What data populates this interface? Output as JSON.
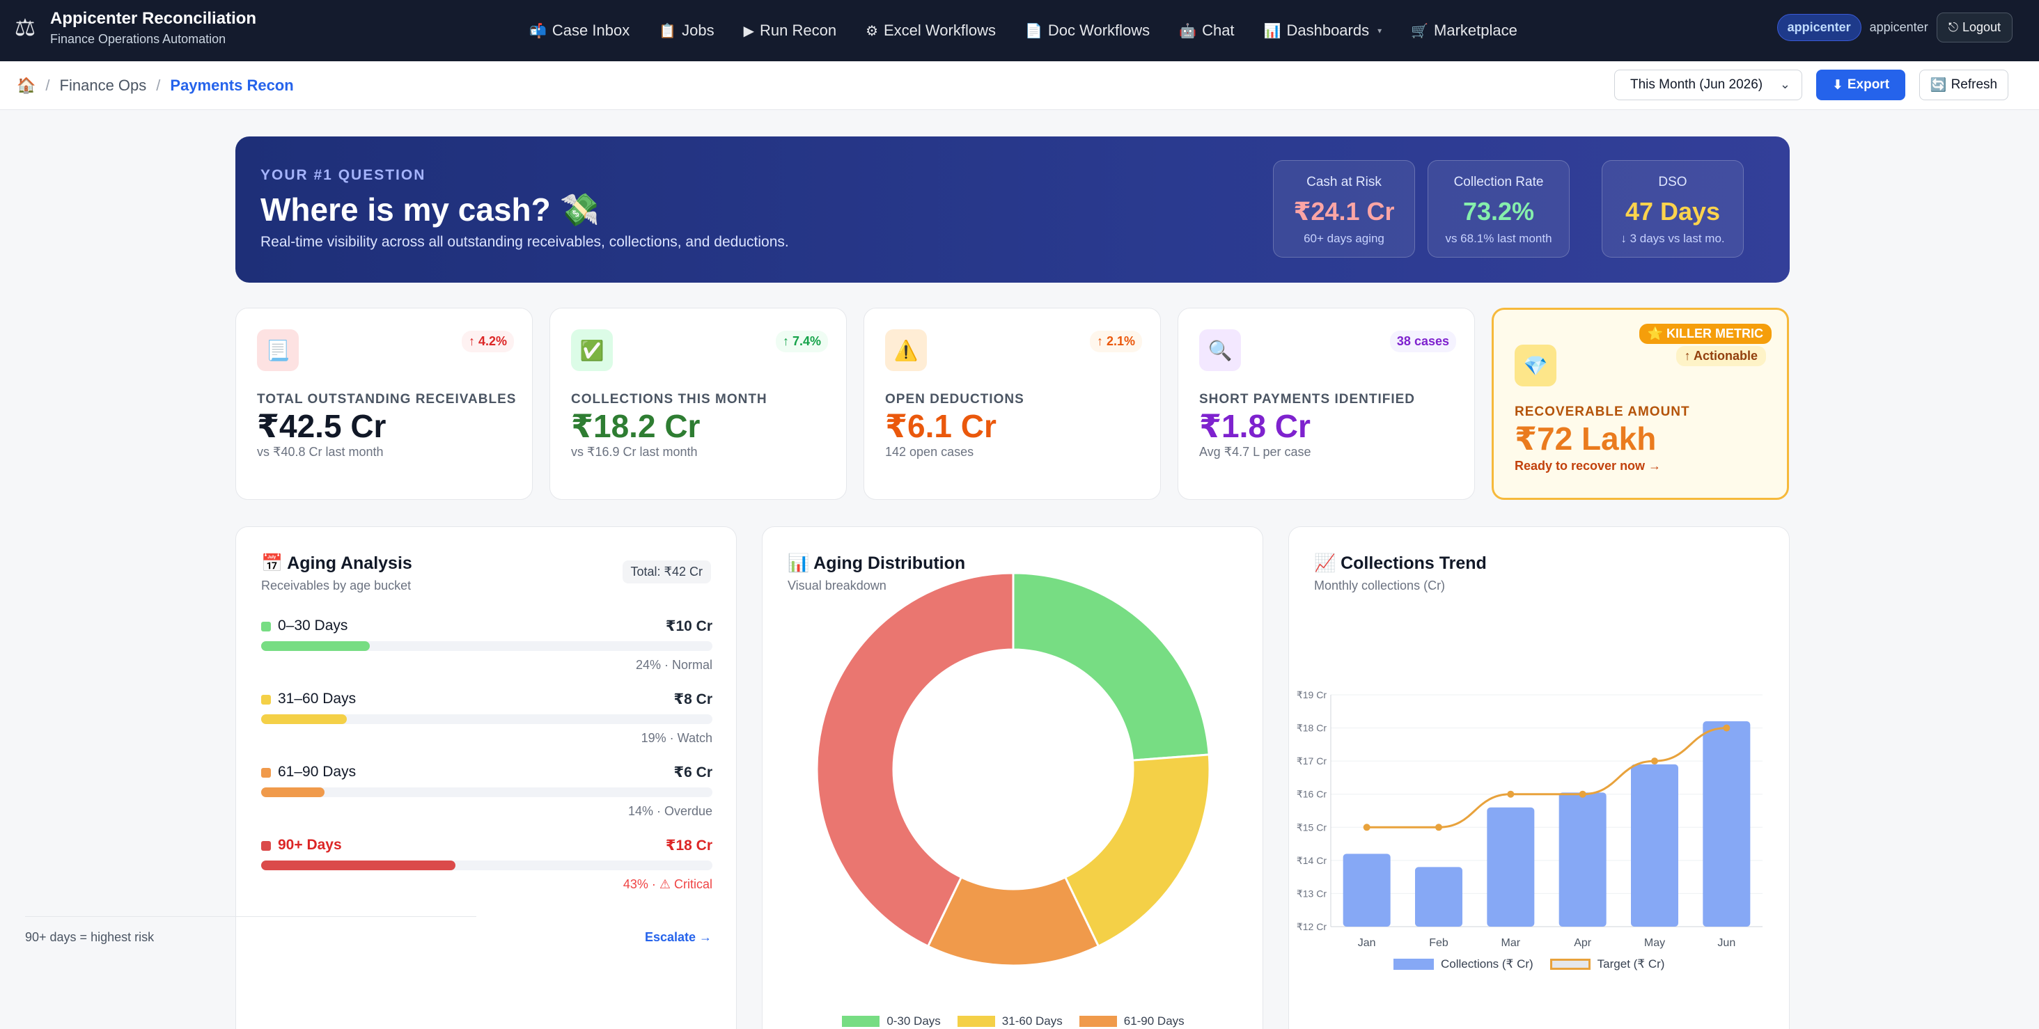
{
  "nav": {
    "title": "Appicenter Reconciliation",
    "subtitle": "Finance Operations Automation",
    "links": [
      {
        "icon": "📬",
        "label": "Case Inbox"
      },
      {
        "icon": "📋",
        "label": "Jobs"
      },
      {
        "icon": "▶",
        "label": "Run Recon"
      },
      {
        "icon": "⚙",
        "label": "Excel Workflows"
      },
      {
        "icon": "📄",
        "label": "Doc Workflows"
      },
      {
        "icon": "🤖",
        "label": "Chat"
      },
      {
        "icon": "📊",
        "label": "Dashboards"
      },
      {
        "icon": "🛒",
        "label": "Marketplace"
      }
    ],
    "user_badge": "appicenter",
    "user_name": "appicenter",
    "logout": "Logout"
  },
  "breadcrumb": {
    "home_icon": "🏠",
    "items": [
      "Finance Ops",
      "Payments Recon"
    ]
  },
  "toolbar": {
    "period": "This Month (Jun 2026)",
    "export": "Export",
    "refresh": "Refresh"
  },
  "hero": {
    "eyebrow": "YOUR #1 QUESTION",
    "title": "Where is my cash? 💸",
    "subtitle": "Real-time visibility across all outstanding receivables, collections, and deductions.",
    "stats": [
      {
        "label": "Cash at Risk",
        "value": "₹24.1 Cr",
        "note": "60+ days aging",
        "color": "#fca5a5"
      },
      {
        "label": "Collection Rate",
        "value": "73.2%",
        "note": "vs 68.1% last month",
        "color": "#86efac"
      },
      {
        "label": "DSO",
        "value": "47 Days",
        "note": "↓ 3 days vs last mo.",
        "color": "#fcd34d"
      }
    ]
  },
  "kpis": [
    {
      "icon": "📃",
      "delta": "↑ 4.2%",
      "label": "TOTAL OUTSTANDING RECEIVABLES",
      "value": "₹42.5 Cr",
      "note": "vs ₹40.8 Cr last month",
      "color": "#111827"
    },
    {
      "icon": "✅",
      "delta": "↑ 7.4%",
      "label": "COLLECTIONS THIS MONTH",
      "value": "₹18.2 Cr",
      "note": "vs ₹16.9 Cr last month",
      "color": "#2e7d32"
    },
    {
      "icon": "⚠️",
      "delta": "↑ 2.1%",
      "label": "OPEN DEDUCTIONS",
      "value": "₹6.1 Cr",
      "note": "142 open cases",
      "color": "#ea580c"
    },
    {
      "icon": "🔍",
      "delta": "38 cases",
      "label": "SHORT PAYMENTS IDENTIFIED",
      "value": "₹1.8 Cr",
      "note": "Avg ₹4.7 L per case",
      "color": "#7e22ce"
    },
    {
      "icon": "💎",
      "killer": "⭐ KILLER METRIC",
      "actionable": "↑ Actionable",
      "label": "RECOVERABLE AMOUNT",
      "value": "₹72 Lakh",
      "note": "Ready to recover now →"
    }
  ],
  "aging": {
    "title": "📅 Aging Analysis",
    "subtitle": "Receivables by age bucket",
    "total": "Total: ₹42 Cr",
    "buckets": [
      {
        "name": "0–30 Days",
        "amount": "₹10 Cr",
        "pct": 24,
        "meta": "24% · Normal",
        "color": "#77dd83"
      },
      {
        "name": "31–60 Days",
        "amount": "₹8 Cr",
        "pct": 19,
        "meta": "19% · Watch",
        "color": "#f4d047"
      },
      {
        "name": "61–90 Days",
        "amount": "₹6 Cr",
        "pct": 14,
        "meta": "14% · Overdue",
        "color": "#f09a4b"
      },
      {
        "name": "90+ Days",
        "amount": "₹18 Cr",
        "pct": 43,
        "meta": "43% · ⚠ Critical",
        "color": "#db4a4a"
      }
    ],
    "footer": "90+ days = highest risk",
    "cta": "Escalate →"
  },
  "distribution": {
    "title": "📊 Aging Distribution",
    "subtitle": "Visual breakdown"
  },
  "trend": {
    "title": "📈 Collections Trend",
    "subtitle": "Monthly collections (Cr)"
  },
  "chart_data": [
    {
      "type": "pie",
      "categories": [
        "0-30 Days",
        "31-60 Days",
        "61-90 Days",
        "90+ Days"
      ],
      "values": [
        10,
        8,
        6,
        18
      ],
      "colors": [
        "#77dd83",
        "#f4d047",
        "#f09a4b",
        "#ea7670"
      ],
      "legend_visible": [
        "0-30 Days",
        "31-60 Days",
        "61-90 Days"
      ],
      "donut": true
    },
    {
      "type": "bar",
      "categories": [
        "Jan",
        "Feb",
        "Mar",
        "Apr",
        "May",
        "Jun"
      ],
      "series": [
        {
          "name": "Collections (₹ Cr)",
          "type": "bar",
          "values": [
            14.2,
            13.8,
            15.6,
            16.05,
            16.9,
            18.2
          ],
          "color": "#86a8f5"
        },
        {
          "name": "Target (₹ Cr)",
          "type": "line",
          "values": [
            15.0,
            15.0,
            16.0,
            16.0,
            17.0,
            18.0
          ],
          "color": "#e8a23c"
        }
      ],
      "ylim": [
        12,
        19
      ],
      "yticks": [
        "₹12 Cr",
        "₹13 Cr",
        "₹14 Cr",
        "₹15 Cr",
        "₹16 Cr",
        "₹17 Cr",
        "₹18 Cr",
        "₹19 Cr"
      ],
      "grid": true,
      "legend": "bottom"
    }
  ]
}
